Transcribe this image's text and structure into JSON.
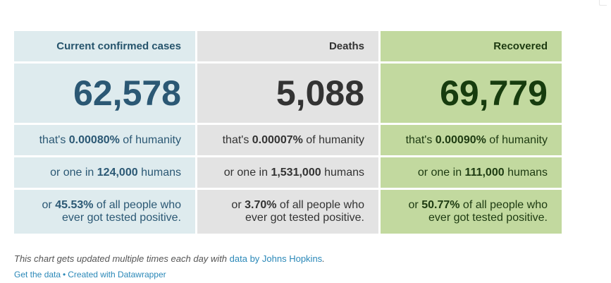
{
  "chart_data": {
    "type": "table",
    "columns": [
      {
        "header": "Current confirmed cases",
        "value": "62,578",
        "share_prefix": "that's ",
        "share_value": "0.00080%",
        "share_suffix": " of humanity",
        "ratio_prefix": "or one in ",
        "ratio_value": "124,000",
        "ratio_suffix": " humans",
        "tested_prefix": "or ",
        "tested_value": "45.53%",
        "tested_suffix_1": " of all people who",
        "tested_suffix_2": "ever got tested positive.",
        "color": "#deebee"
      },
      {
        "header": "Deaths",
        "value": "5,088",
        "share_prefix": "that's ",
        "share_value": "0.00007%",
        "share_suffix": " of humanity",
        "ratio_prefix": "or one in ",
        "ratio_value": "1,531,000",
        "ratio_suffix": " humans",
        "tested_prefix": "or ",
        "tested_value": "3.70%",
        "tested_suffix_1": " of all people who",
        "tested_suffix_2": "ever got tested positive.",
        "color": "#e3e3e3"
      },
      {
        "header": "Recovered",
        "value": "69,779",
        "share_prefix": "that's ",
        "share_value": "0.00090%",
        "share_suffix": " of humanity",
        "ratio_prefix": "or one in ",
        "ratio_value": "111,000",
        "ratio_suffix": " humans",
        "tested_prefix": "or ",
        "tested_value": "50.77%",
        "tested_suffix_1": " of all people who",
        "tested_suffix_2": "ever got tested positive.",
        "color": "#c2d99f"
      }
    ]
  },
  "footer": {
    "note_prefix": "This chart gets updated multiple times each day with ",
    "note_link": "data by Johns Hopkins",
    "note_suffix": ".",
    "get_data": "Get the data",
    "separator": "•",
    "created_with": "Created with Datawrapper"
  }
}
